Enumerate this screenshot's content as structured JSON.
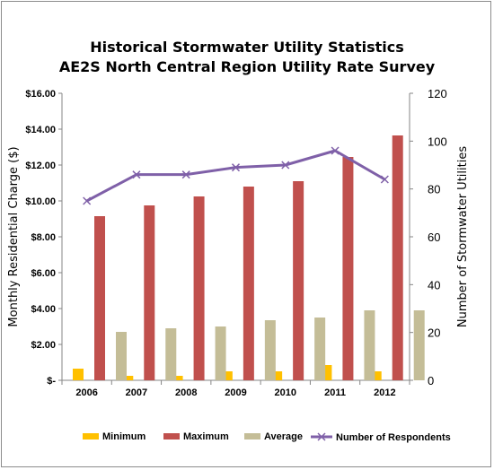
{
  "chart_data": {
    "type": "bar",
    "title": "Historical Stormwater Utility Statistics",
    "subtitle": "AE2S North Central Region Utility Rate Survey",
    "categories": [
      "2006",
      "2007",
      "2008",
      "2009",
      "2010",
      "2011",
      "2012"
    ],
    "series": [
      {
        "name": "Minimum",
        "type": "bar",
        "axis": "left",
        "color": "#FFC000",
        "values": [
          0.65,
          0.25,
          0.25,
          0.5,
          0.5,
          0.85,
          0.5
        ]
      },
      {
        "name": "Maximum",
        "type": "bar",
        "axis": "left",
        "color": "#C0504D",
        "values": [
          9.15,
          9.75,
          10.25,
          10.8,
          11.1,
          12.45,
          13.65
        ]
      },
      {
        "name": "Average",
        "type": "bar",
        "axis": "left",
        "color": "#C4BD97",
        "values": [
          2.7,
          2.9,
          3.0,
          3.35,
          3.5,
          3.9,
          3.9
        ]
      },
      {
        "name": "Number of Respondents",
        "type": "line",
        "axis": "right",
        "color": "#7F60A8",
        "values": [
          75,
          86,
          86,
          89,
          90,
          96,
          84
        ]
      }
    ],
    "ylabel": "Monthly Residential Charge ($)",
    "ylim": [
      0,
      16
    ],
    "yticks": [
      "$-",
      "$2.00",
      "$4.00",
      "$6.00",
      "$8.00",
      "$10.00",
      "$12.00",
      "$14.00",
      "$16.00"
    ],
    "y2label": "Number of Stormwater Utilities",
    "y2lim": [
      0,
      120
    ],
    "y2ticks": [
      "0",
      "20",
      "40",
      "60",
      "80",
      "100",
      "120"
    ],
    "grid": false,
    "legend": "bottom"
  }
}
